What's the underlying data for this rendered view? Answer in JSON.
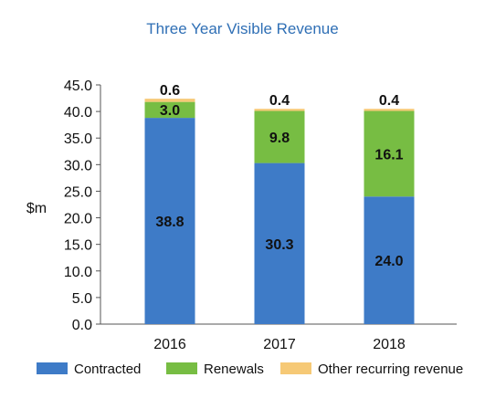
{
  "chart_data": {
    "type": "bar",
    "stacked": true,
    "title": "Three Year Visible Revenue",
    "ylabel": "$m",
    "xlabel": "",
    "categories": [
      "2016",
      "2017",
      "2018"
    ],
    "ylim": [
      0,
      45
    ],
    "yticks": [
      "0.0",
      "5.0",
      "10.0",
      "15.0",
      "20.0",
      "25.0",
      "30.0",
      "35.0",
      "40.0",
      "45.0"
    ],
    "grid": false,
    "legend": "bottom",
    "series": [
      {
        "name": "Contracted",
        "values": [
          38.8,
          30.3,
          24.0
        ],
        "labels": [
          "38.8",
          "30.3",
          "24.0"
        ],
        "color": "#3e7bc7"
      },
      {
        "name": "Renewals",
        "values": [
          3.0,
          9.8,
          16.1
        ],
        "labels": [
          "3.0",
          "9.8",
          "16.1"
        ],
        "color": "#77bd43"
      },
      {
        "name": "Other recurring revenue",
        "values": [
          0.6,
          0.4,
          0.4
        ],
        "labels": [
          "0.6",
          "0.4",
          "0.4"
        ],
        "color": "#f6c976"
      }
    ]
  }
}
